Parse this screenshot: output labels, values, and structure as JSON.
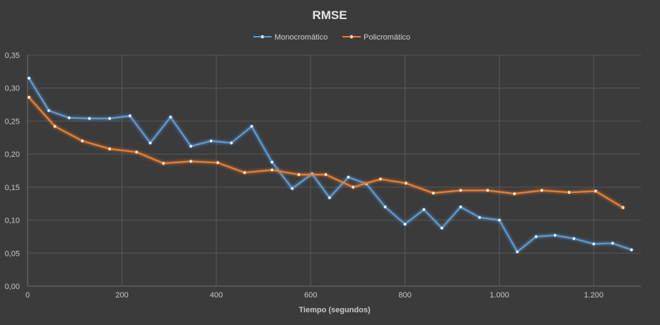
{
  "chart_data": {
    "type": "line",
    "title": "RMSE",
    "xlabel": "Tiempo (segundos)",
    "ylabel": "",
    "xlim": [
      0,
      1300
    ],
    "ylim": [
      0,
      0.35
    ],
    "grid": true,
    "legend_position": "top",
    "x_ticks": [
      {
        "value": 0,
        "label": "0"
      },
      {
        "value": 200,
        "label": "200"
      },
      {
        "value": 400,
        "label": "400"
      },
      {
        "value": 600,
        "label": "600"
      },
      {
        "value": 800,
        "label": "800"
      },
      {
        "value": 1000,
        "label": "1.000"
      },
      {
        "value": 1200,
        "label": "1.200"
      }
    ],
    "y_ticks": [
      {
        "value": 0,
        "label": "0,00"
      },
      {
        "value": 0.05,
        "label": "0,05"
      },
      {
        "value": 0.1,
        "label": "0,10"
      },
      {
        "value": 0.15,
        "label": "0,15"
      },
      {
        "value": 0.2,
        "label": "0,20"
      },
      {
        "value": 0.25,
        "label": "0,25"
      },
      {
        "value": 0.3,
        "label": "0,30"
      },
      {
        "value": 0.35,
        "label": "0,35"
      }
    ],
    "series": [
      {
        "name": "Monocromático",
        "color": "#5b9bd5",
        "points": [
          [
            3,
            0.315
          ],
          [
            45,
            0.266
          ],
          [
            88,
            0.255
          ],
          [
            131,
            0.254
          ],
          [
            174,
            0.254
          ],
          [
            217,
            0.258
          ],
          [
            260,
            0.217
          ],
          [
            303,
            0.256
          ],
          [
            346,
            0.212
          ],
          [
            389,
            0.22
          ],
          [
            432,
            0.217
          ],
          [
            475,
            0.242
          ],
          [
            518,
            0.188
          ],
          [
            561,
            0.148
          ],
          [
            603,
            0.17
          ],
          [
            640,
            0.134
          ],
          [
            680,
            0.165
          ],
          [
            718,
            0.155
          ],
          [
            758,
            0.12
          ],
          [
            800,
            0.094
          ],
          [
            840,
            0.116
          ],
          [
            878,
            0.088
          ],
          [
            918,
            0.12
          ],
          [
            958,
            0.104
          ],
          [
            1000,
            0.1
          ],
          [
            1038,
            0.052
          ],
          [
            1078,
            0.075
          ],
          [
            1118,
            0.077
          ],
          [
            1158,
            0.072
          ],
          [
            1200,
            0.064
          ],
          [
            1240,
            0.065
          ],
          [
            1280,
            0.055
          ]
        ]
      },
      {
        "name": "Policromático",
        "color": "#ed7d31",
        "points": [
          [
            3,
            0.286
          ],
          [
            58,
            0.242
          ],
          [
            116,
            0.22
          ],
          [
            174,
            0.208
          ],
          [
            231,
            0.203
          ],
          [
            288,
            0.186
          ],
          [
            346,
            0.189
          ],
          [
            403,
            0.187
          ],
          [
            460,
            0.172
          ],
          [
            518,
            0.176
          ],
          [
            575,
            0.169
          ],
          [
            632,
            0.169
          ],
          [
            690,
            0.15
          ],
          [
            748,
            0.162
          ],
          [
            802,
            0.156
          ],
          [
            860,
            0.141
          ],
          [
            918,
            0.145
          ],
          [
            975,
            0.145
          ],
          [
            1032,
            0.14
          ],
          [
            1090,
            0.145
          ],
          [
            1148,
            0.142
          ],
          [
            1204,
            0.144
          ],
          [
            1262,
            0.119
          ]
        ]
      }
    ]
  }
}
